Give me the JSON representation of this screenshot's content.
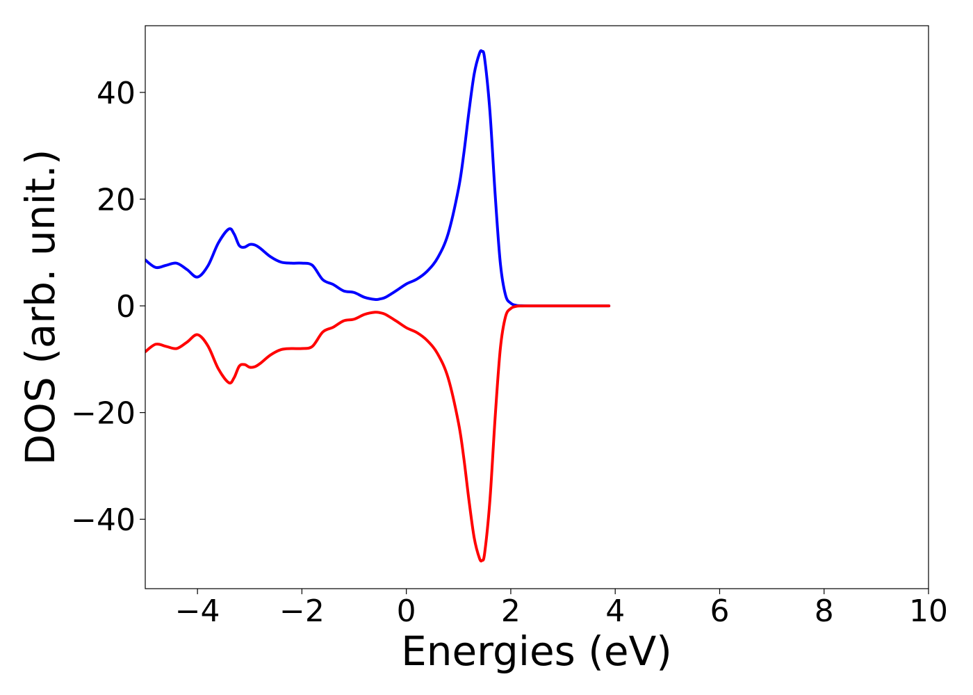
{
  "chart_data": {
    "type": "line",
    "title": "",
    "xlabel": "Energies (eV)",
    "ylabel": "DOS (arb. unit.)",
    "xlim": [
      -5,
      10
    ],
    "ylim": [
      -53,
      52.5
    ],
    "grid": false,
    "legend": "none",
    "x_ticks": [
      {
        "value": -4,
        "label": "−4"
      },
      {
        "value": -2,
        "label": "−2"
      },
      {
        "value": 0,
        "label": "0"
      },
      {
        "value": 2,
        "label": "2"
      },
      {
        "value": 4,
        "label": "4"
      },
      {
        "value": 6,
        "label": "6"
      },
      {
        "value": 8,
        "label": "8"
      },
      {
        "value": 10,
        "label": "10"
      }
    ],
    "y_ticks": [
      {
        "value": -40,
        "label": "−40"
      },
      {
        "value": -20,
        "label": "−20"
      },
      {
        "value": 0,
        "label": "0"
      },
      {
        "value": 20,
        "label": "20"
      },
      {
        "value": 40,
        "label": "40"
      }
    ],
    "x": [
      -5.0,
      -4.8,
      -4.6,
      -4.4,
      -4.2,
      -4.0,
      -3.8,
      -3.6,
      -3.4,
      -3.3,
      -3.2,
      -3.1,
      -3.0,
      -2.9,
      -2.8,
      -2.6,
      -2.4,
      -2.2,
      -2.0,
      -1.8,
      -1.6,
      -1.4,
      -1.2,
      -1.0,
      -0.8,
      -0.6,
      -0.5,
      -0.4,
      -0.2,
      0.0,
      0.2,
      0.4,
      0.6,
      0.8,
      1.0,
      1.1,
      1.2,
      1.3,
      1.4,
      1.45,
      1.5,
      1.6,
      1.7,
      1.8,
      1.9,
      2.0,
      2.1,
      2.2,
      2.4,
      2.6,
      2.8,
      3.0,
      3.2,
      3.4,
      3.6,
      3.88
    ],
    "series": [
      {
        "color": "#0000ff",
        "values": [
          8.6,
          7.2,
          7.6,
          8.0,
          6.8,
          5.4,
          7.5,
          11.8,
          14.4,
          13.5,
          11.3,
          11.0,
          11.5,
          11.4,
          10.8,
          9.2,
          8.2,
          8.0,
          8.0,
          7.6,
          4.9,
          4.0,
          2.8,
          2.5,
          1.6,
          1.2,
          1.3,
          1.6,
          2.8,
          4.1,
          5.0,
          6.5,
          9.0,
          13.5,
          22.0,
          28.5,
          36.5,
          43.5,
          47.3,
          47.7,
          46.3,
          36.5,
          21.0,
          8.0,
          2.0,
          0.5,
          0.1,
          0.02,
          0.0,
          0.0,
          0.0,
          0.0,
          0.0,
          0.0,
          0.0,
          0.0
        ]
      },
      {
        "color": "#ff0000",
        "values": [
          -8.6,
          -7.2,
          -7.6,
          -8.0,
          -6.8,
          -5.4,
          -7.5,
          -11.8,
          -14.4,
          -13.5,
          -11.3,
          -11.0,
          -11.5,
          -11.4,
          -10.8,
          -9.2,
          -8.2,
          -8.0,
          -8.0,
          -7.6,
          -4.9,
          -4.0,
          -2.8,
          -2.5,
          -1.6,
          -1.2,
          -1.3,
          -1.6,
          -2.8,
          -4.1,
          -5.0,
          -6.5,
          -9.0,
          -13.5,
          -22.0,
          -28.5,
          -36.5,
          -43.5,
          -47.3,
          -47.7,
          -46.3,
          -36.5,
          -21.0,
          -8.0,
          -2.0,
          -0.5,
          -0.1,
          -0.02,
          0.0,
          0.0,
          0.0,
          0.0,
          0.0,
          0.0,
          0.0,
          0.0
        ]
      }
    ]
  }
}
